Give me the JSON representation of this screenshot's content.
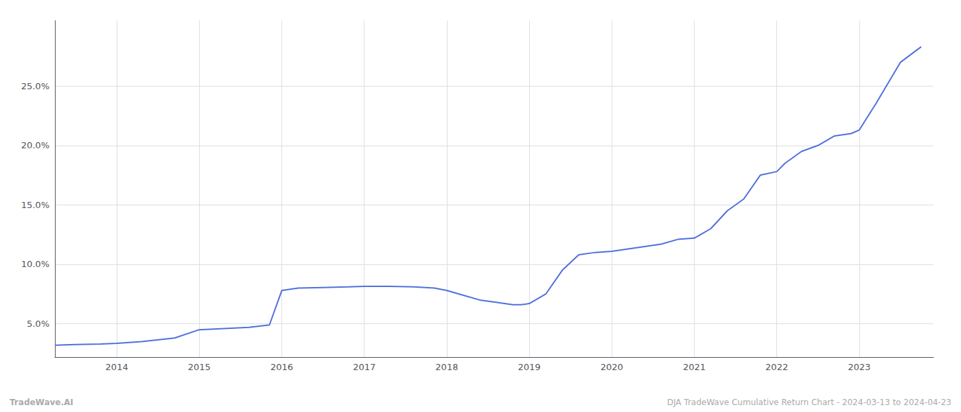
{
  "chart_data": {
    "type": "line",
    "x": [
      2013.25,
      2013.5,
      2013.8,
      2014.0,
      2014.3,
      2014.7,
      2015.0,
      2015.3,
      2015.6,
      2015.85,
      2016.0,
      2016.2,
      2016.5,
      2016.8,
      2017.0,
      2017.3,
      2017.6,
      2017.85,
      2018.0,
      2018.15,
      2018.4,
      2018.6,
      2018.8,
      2018.9,
      2019.0,
      2019.2,
      2019.4,
      2019.6,
      2019.8,
      2020.0,
      2020.2,
      2020.4,
      2020.6,
      2020.8,
      2021.0,
      2021.2,
      2021.4,
      2021.6,
      2021.8,
      2022.0,
      2022.1,
      2022.3,
      2022.5,
      2022.7,
      2022.9,
      2023.0,
      2023.2,
      2023.5,
      2023.75
    ],
    "values": [
      3.2,
      3.25,
      3.3,
      3.35,
      3.5,
      3.8,
      4.5,
      4.6,
      4.7,
      4.9,
      7.8,
      8.0,
      8.05,
      8.1,
      8.15,
      8.15,
      8.1,
      8.0,
      7.8,
      7.5,
      7.0,
      6.8,
      6.6,
      6.6,
      6.7,
      7.5,
      9.5,
      10.8,
      11.0,
      11.1,
      11.3,
      11.5,
      11.7,
      12.1,
      12.2,
      13.0,
      14.5,
      15.5,
      17.5,
      17.8,
      18.5,
      19.5,
      20.0,
      20.8,
      21.0,
      21.3,
      23.5,
      27.0,
      28.3
    ],
    "xlim": [
      2013.25,
      2023.9
    ],
    "xticks": [
      2014,
      2015,
      2016,
      2017,
      2018,
      2019,
      2020,
      2021,
      2022,
      2023
    ],
    "ylim": [
      2.2,
      30.5
    ],
    "yticks": [
      {
        "value": 5.0,
        "label": "5.0%"
      },
      {
        "value": 10.0,
        "label": "10.0%"
      },
      {
        "value": 15.0,
        "label": "15.0%"
      },
      {
        "value": 20.0,
        "label": "20.0%"
      },
      {
        "value": 25.0,
        "label": "25.0%"
      }
    ],
    "grid": true,
    "annotations": [
      "TradeWave.AI",
      "DJA TradeWave Cumulative Return Chart - 2024-03-13 to 2024-04-23"
    ]
  }
}
